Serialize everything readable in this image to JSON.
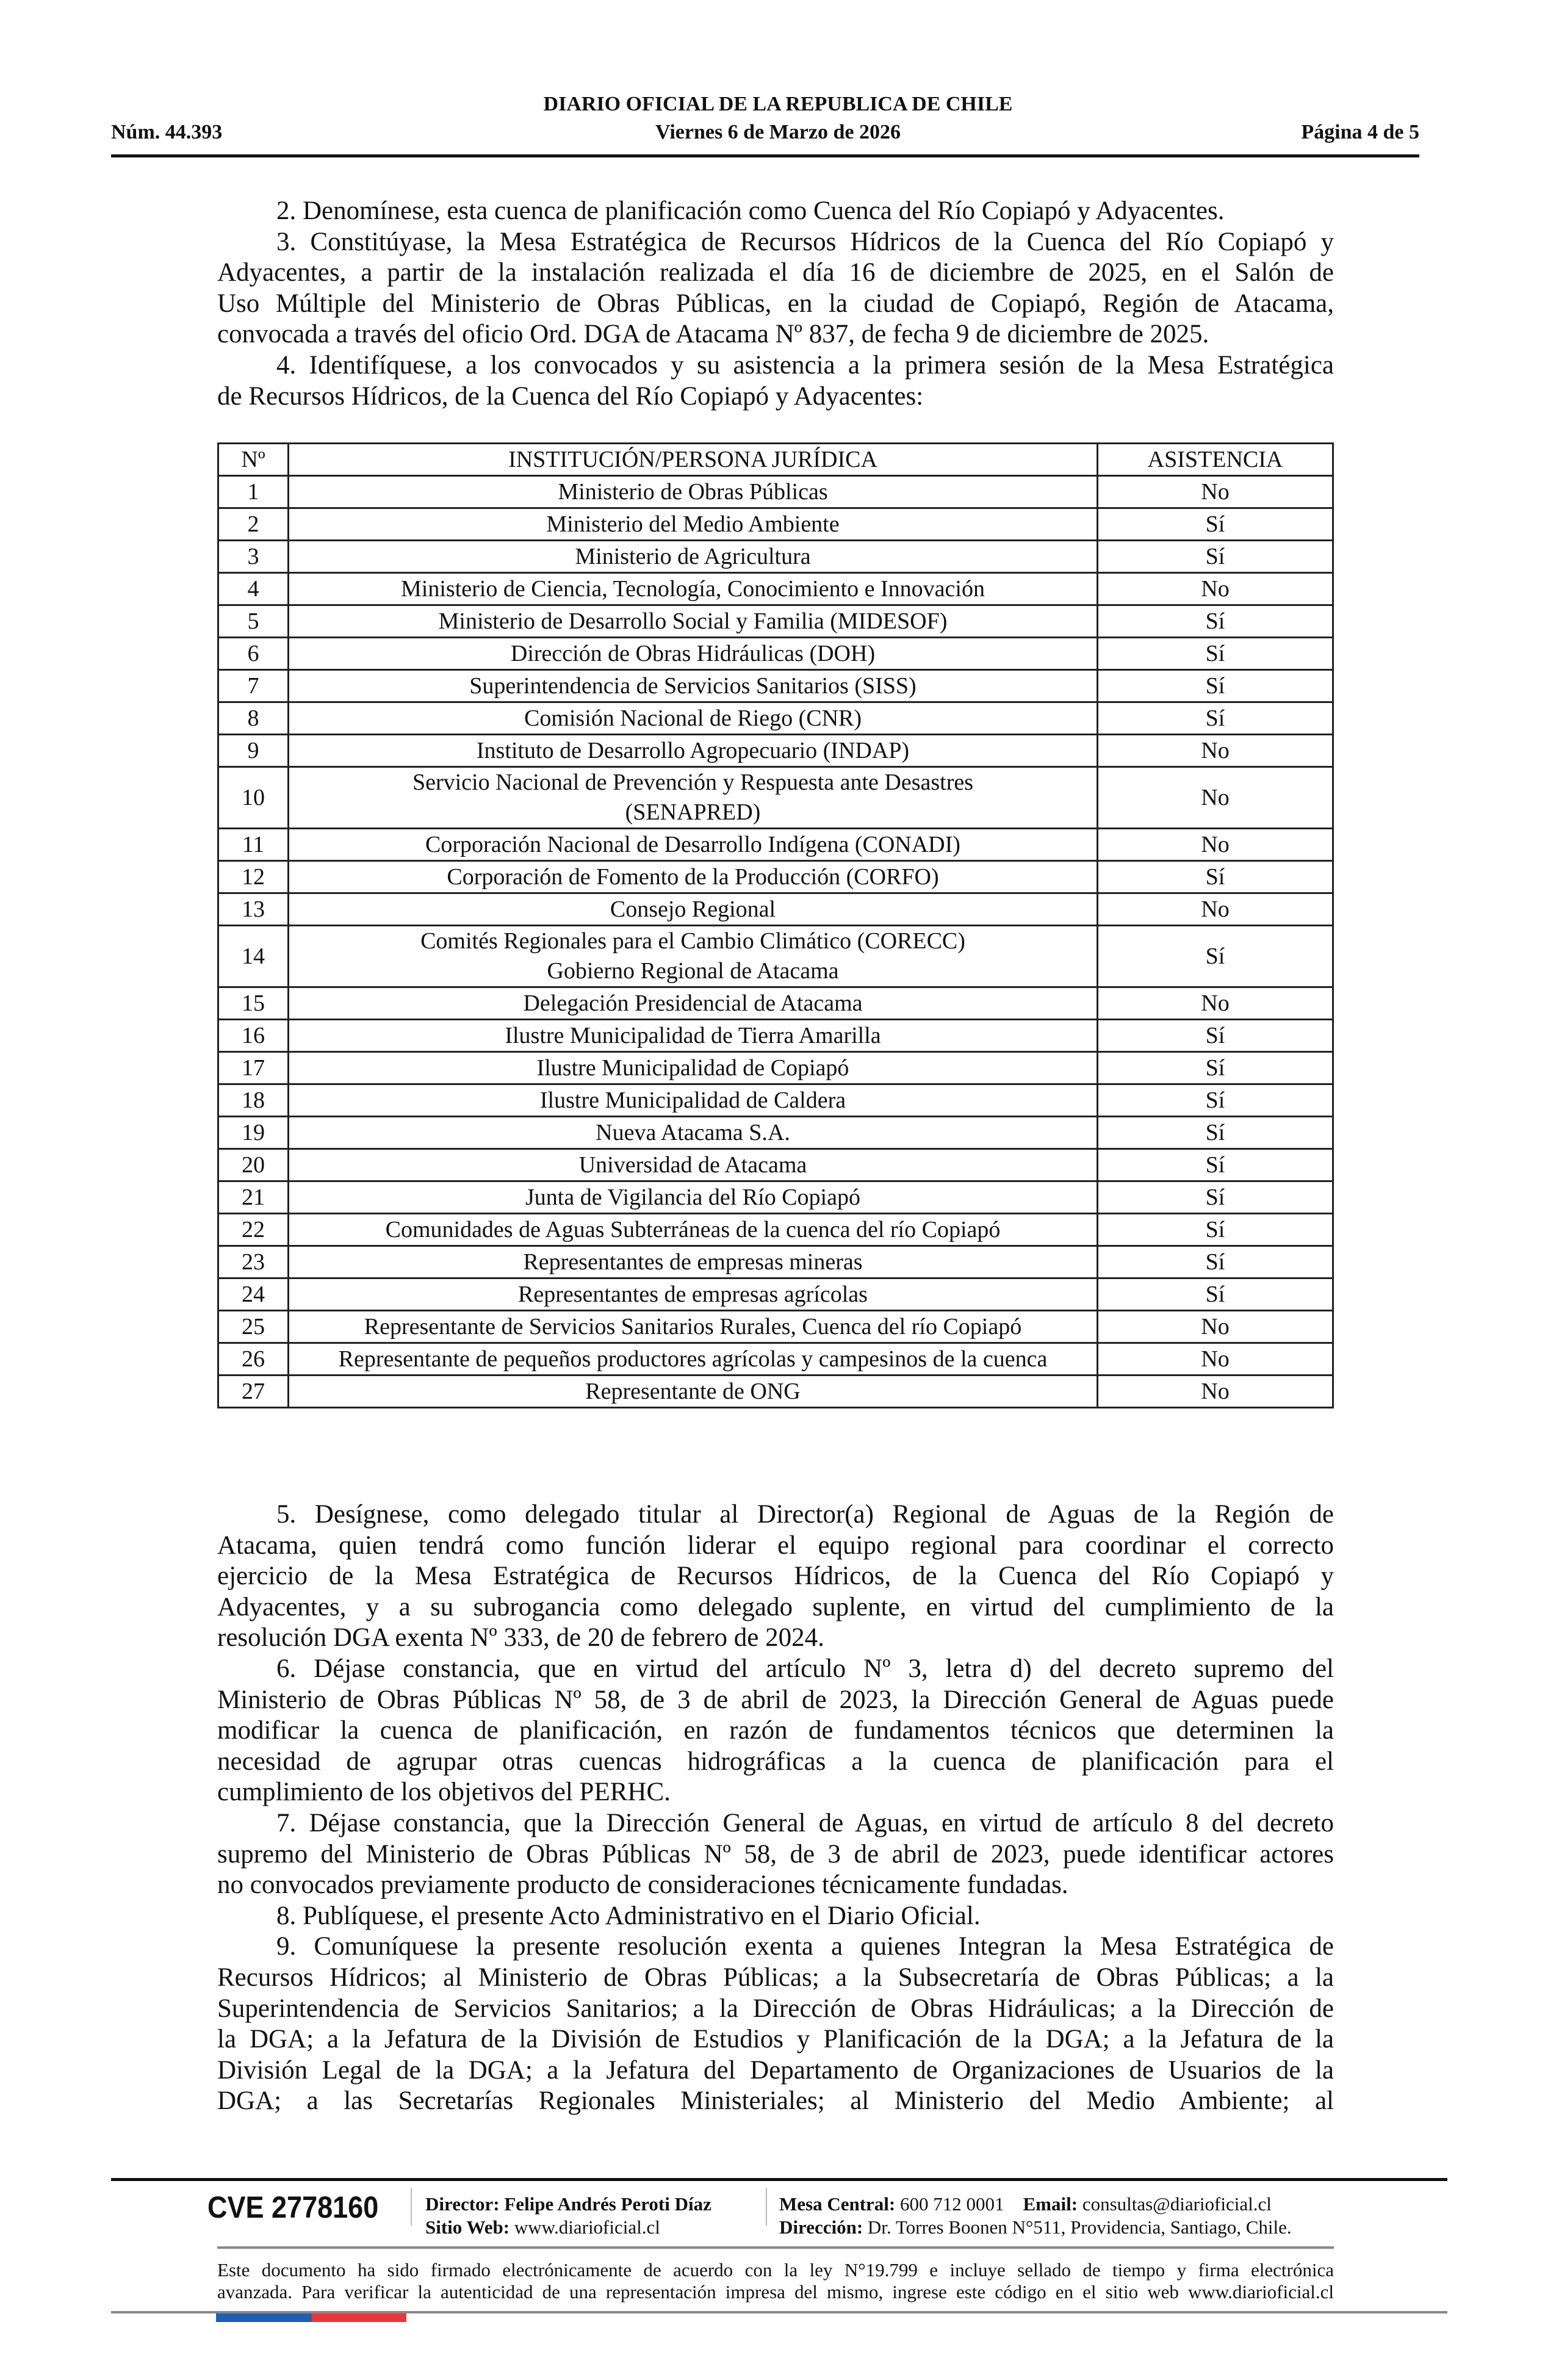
{
  "header": {
    "title": "DIARIO OFICIAL DE LA REPUBLICA DE CHILE",
    "number": "Núm. 44.393",
    "date": "Viernes 6 de Marzo de 2026",
    "page": "Página 4 de 5"
  },
  "body_top": [
    [
      "2. Denomínese, esta cuenca de planificación como Cuenca del Río Copiapó y Adyacentes."
    ],
    [
      "3. Constitúyase, la Mesa Estratégica de Recursos Hídricos de la Cuenca del Río Copiapó y",
      "Adyacentes, a partir de la instalación realizada el día 16 de diciembre de 2025, en el Salón de",
      "Uso Múltiple del Ministerio de Obras Públicas, en la ciudad de Copiapó, Región de Atacama,",
      "convocada a través del oficio Ord. DGA de Atacama Nº 837, de fecha 9 de diciembre de 2025."
    ],
    [
      "4. Identifíquese, a los convocados y su asistencia a la primera sesión de la Mesa Estratégica",
      "de Recursos Hídricos, de la Cuenca del Río Copiapó y Adyacentes:"
    ]
  ],
  "table": {
    "headers": [
      "Nº",
      "INSTITUCIÓN/PERSONA JURÍDICA",
      "ASISTENCIA"
    ],
    "rows": [
      [
        "1",
        "Ministerio de Obras Públicas",
        "No"
      ],
      [
        "2",
        "Ministerio del Medio Ambiente",
        "Sí"
      ],
      [
        "3",
        "Ministerio de Agricultura",
        "Sí"
      ],
      [
        "4",
        "Ministerio de Ciencia, Tecnología, Conocimiento e Innovación",
        "No"
      ],
      [
        "5",
        "Ministerio de Desarrollo Social y Familia (MIDESOF)",
        "Sí"
      ],
      [
        "6",
        "Dirección de Obras Hidráulicas (DOH)",
        "Sí"
      ],
      [
        "7",
        "Superintendencia de Servicios Sanitarios (SISS)",
        "Sí"
      ],
      [
        "8",
        "Comisión Nacional de Riego (CNR)",
        "Sí"
      ],
      [
        "9",
        "Instituto de Desarrollo Agropecuario (INDAP)",
        "No"
      ],
      [
        "10",
        "Servicio Nacional de Prevención y Respuesta ante Desastres\n(SENAPRED)",
        "No"
      ],
      [
        "11",
        "Corporación Nacional de Desarrollo Indígena (CONADI)",
        "No"
      ],
      [
        "12",
        "Corporación de Fomento de la Producción (CORFO)",
        "Sí"
      ],
      [
        "13",
        "Consejo Regional",
        "No"
      ],
      [
        "14",
        "Comités Regionales para el Cambio Climático (CORECC)\nGobierno Regional de Atacama",
        "Sí"
      ],
      [
        "15",
        "Delegación Presidencial de Atacama",
        "No"
      ],
      [
        "16",
        "Ilustre Municipalidad de Tierra Amarilla",
        "Sí"
      ],
      [
        "17",
        "Ilustre Municipalidad de Copiapó",
        "Sí"
      ],
      [
        "18",
        "Ilustre Municipalidad de Caldera",
        "Sí"
      ],
      [
        "19",
        "Nueva Atacama S.A.",
        "Sí"
      ],
      [
        "20",
        "Universidad de Atacama",
        "Sí"
      ],
      [
        "21",
        "Junta de Vigilancia del Río Copiapó",
        "Sí"
      ],
      [
        "22",
        "Comunidades de Aguas Subterráneas de la cuenca del río Copiapó",
        "Sí"
      ],
      [
        "23",
        "Representantes de empresas mineras",
        "Sí"
      ],
      [
        "24",
        "Representantes de empresas agrícolas",
        "Sí"
      ],
      [
        "25",
        "Representante de Servicios Sanitarios Rurales, Cuenca del río Copiapó",
        "No"
      ],
      [
        "26",
        "Representante de pequeños productores agrícolas y campesinos de la cuenca",
        "No"
      ],
      [
        "27",
        "Representante de ONG",
        "No"
      ]
    ]
  },
  "body_bottom": [
    [
      "5. Desígnese, como delegado titular al Director(a) Regional de Aguas de la Región de",
      "Atacama, quien tendrá como función liderar el equipo regional para coordinar el correcto",
      "ejercicio de la Mesa Estratégica de Recursos Hídricos, de la Cuenca del Río Copiapó y",
      "Adyacentes, y a su subrogancia como delegado suplente, en virtud del cumplimiento de la",
      "resolución DGA exenta Nº 333, de 20 de febrero de 2024."
    ],
    [
      "6. Déjase constancia, que en virtud del artículo Nº 3, letra d) del decreto supremo del",
      "Ministerio de Obras Públicas Nº 58, de 3 de abril de 2023, la Dirección General de Aguas puede",
      "modificar la cuenca de planificación, en razón de fundamentos técnicos que determinen la",
      "necesidad de agrupar otras cuencas hidrográficas a la cuenca de planificación para el",
      "cumplimiento de los objetivos del PERHC."
    ],
    [
      "7. Déjase constancia, que la Dirección General de Aguas, en virtud de artículo 8 del decreto",
      "supremo del Ministerio de Obras Públicas Nº 58, de 3 de abril de 2023, puede identificar actores",
      "no convocados previamente producto de consideraciones técnicamente fundadas."
    ],
    [
      "8. Publíquese, el presente Acto Administrativo en el Diario Oficial."
    ],
    [
      "9. Comuníquese la presente resolución exenta a quienes Integran la Mesa Estratégica de",
      "Recursos Hídricos; al Ministerio de Obras Públicas; a la Subsecretaría de Obras Públicas; a la",
      "Superintendencia de Servicios Sanitarios; a la Dirección de Obras Hidráulicas; a la Dirección de",
      "la DGA; a la Jefatura de la División de Estudios y Planificación de la DGA; a la Jefatura de la",
      "División Legal de la DGA; a la Jefatura del Departamento de Organizaciones de Usuarios de la",
      "DGA; a las Secretarías Regionales Ministeriales; al Ministerio del Medio Ambiente; al"
    ]
  ],
  "footer": {
    "cve": "CVE 2778160",
    "director_label": "Director:",
    "director_name": "Felipe Andrés Peroti Díaz",
    "web_label": "Sitio Web:",
    "web": "www.diarioficial.cl",
    "phone_label": "Mesa Central:",
    "phone": "600 712 0001",
    "email_label": "Email:",
    "email": "consultas@diarioficial.cl",
    "address_label": "Dirección:",
    "address": "Dr. Torres Boonen N°511, Providencia, Santiago, Chile.",
    "disclaimer_1": "Este documento ha sido firmado electrónicamente de acuerdo con la ley N°19.799 e incluye sellado de tiempo y firma electrónica",
    "disclaimer_2": "avanzada. Para verificar la autenticidad de una representación impresa del mismo, ingrese este código en el sitio web www.diarioficial.cl",
    "flag_colors": [
      "#1f5fb0",
      "#e8373d"
    ]
  },
  "last_paragraph_continues": true
}
